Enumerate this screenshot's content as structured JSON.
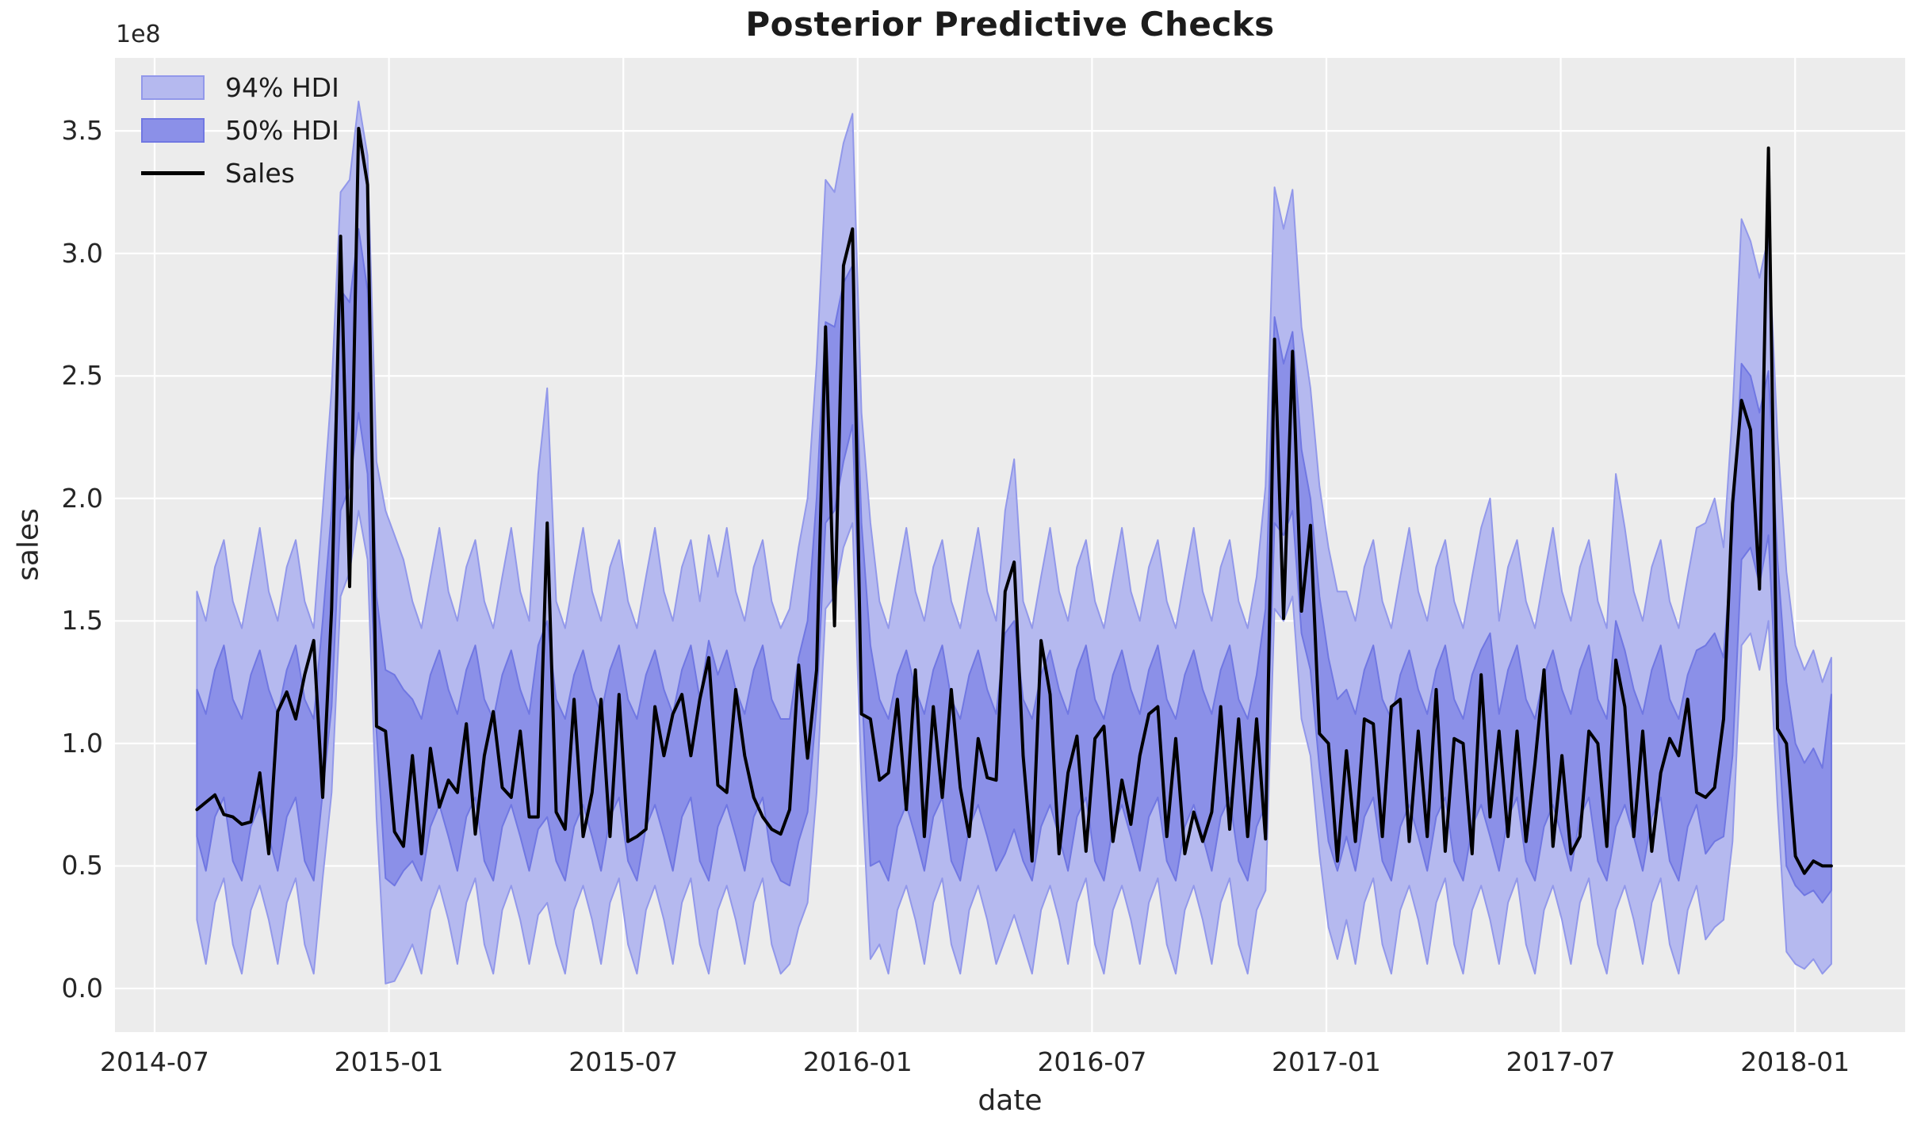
{
  "figure": {
    "title": "Posterior Predictive Checks",
    "xlabel": "date",
    "ylabel": "sales",
    "offset_text": "1e8"
  },
  "legend": {
    "items": [
      {
        "label": "94% HDI",
        "kind": "band",
        "fill": "#b5b9ef",
        "edge": "#9298ea"
      },
      {
        "label": "50% HDI",
        "kind": "band",
        "fill": "#8b90e8",
        "edge": "#7077e2"
      },
      {
        "label": "Sales",
        "kind": "line",
        "color": "#000000"
      }
    ]
  },
  "chart_data": {
    "type": "line",
    "title": "Posterior Predictive Checks",
    "xlabel": "date",
    "ylabel": "sales",
    "y_offset_factor": "1e8",
    "x_start": "2014-08-03",
    "x_freq": "weekly",
    "x_tick_labels": [
      "2014-07",
      "2015-01",
      "2015-07",
      "2016-01",
      "2016-07",
      "2017-01",
      "2017-07",
      "2018-01"
    ],
    "y_tick_labels": [
      "0.0",
      "0.5",
      "1.0",
      "1.5",
      "2.0",
      "2.5",
      "3.0",
      "3.5"
    ],
    "y_tick_values": [
      0,
      0.5,
      1.0,
      1.5,
      2.0,
      2.5,
      3.0,
      3.5
    ],
    "ylim": [
      -0.178,
      3.798
    ],
    "grid": true,
    "legend_position": "upper left",
    "background": "#ececec",
    "grid_color": "#ffffff",
    "series": [
      {
        "name": "94% HDI",
        "kind": "band",
        "fill": "#b5b9ef",
        "edge": "#9298ea",
        "upper": [
          1.62,
          1.5,
          1.72,
          1.83,
          1.58,
          1.47,
          1.68,
          1.88,
          1.62,
          1.5,
          1.72,
          1.83,
          1.58,
          1.47,
          1.95,
          2.45,
          3.25,
          3.3,
          3.62,
          3.4,
          2.15,
          1.95,
          1.85,
          1.75,
          1.58,
          1.47,
          1.68,
          1.88,
          1.62,
          1.5,
          1.72,
          1.83,
          1.58,
          1.47,
          1.68,
          1.88,
          1.62,
          1.5,
          2.1,
          2.45,
          1.58,
          1.47,
          1.68,
          1.88,
          1.62,
          1.5,
          1.72,
          1.83,
          1.58,
          1.47,
          1.68,
          1.88,
          1.62,
          1.5,
          1.72,
          1.83,
          1.58,
          1.85,
          1.68,
          1.88,
          1.62,
          1.5,
          1.72,
          1.83,
          1.58,
          1.47,
          1.55,
          1.8,
          2.0,
          2.55,
          3.3,
          3.25,
          3.45,
          3.57,
          2.35,
          1.9,
          1.58,
          1.47,
          1.68,
          1.88,
          1.62,
          1.5,
          1.72,
          1.83,
          1.58,
          1.47,
          1.68,
          1.88,
          1.62,
          1.5,
          1.95,
          2.16,
          1.58,
          1.47,
          1.68,
          1.88,
          1.62,
          1.5,
          1.72,
          1.83,
          1.58,
          1.47,
          1.68,
          1.88,
          1.62,
          1.5,
          1.72,
          1.83,
          1.58,
          1.47,
          1.68,
          1.88,
          1.62,
          1.5,
          1.72,
          1.83,
          1.58,
          1.47,
          1.68,
          2.05,
          3.27,
          3.1,
          3.26,
          2.7,
          2.45,
          2.05,
          1.8,
          1.62,
          1.62,
          1.5,
          1.72,
          1.83,
          1.58,
          1.47,
          1.68,
          1.88,
          1.62,
          1.5,
          1.72,
          1.83,
          1.58,
          1.47,
          1.68,
          1.88,
          2.0,
          1.5,
          1.72,
          1.83,
          1.58,
          1.47,
          1.68,
          1.88,
          1.62,
          1.5,
          1.72,
          1.83,
          1.58,
          1.47,
          2.1,
          1.88,
          1.62,
          1.5,
          1.72,
          1.83,
          1.58,
          1.47,
          1.68,
          1.88,
          1.9,
          2.0,
          1.8,
          2.35,
          3.14,
          3.05,
          2.9,
          3.07,
          2.25,
          1.7,
          1.4,
          1.3,
          1.38,
          1.25,
          1.35
        ],
        "lower": [
          0.28,
          0.1,
          0.35,
          0.45,
          0.18,
          0.06,
          0.32,
          0.42,
          0.28,
          0.1,
          0.35,
          0.45,
          0.18,
          0.06,
          0.45,
          0.8,
          1.6,
          1.7,
          1.95,
          1.75,
          0.7,
          0.02,
          0.03,
          0.1,
          0.18,
          0.06,
          0.32,
          0.42,
          0.28,
          0.1,
          0.35,
          0.45,
          0.18,
          0.06,
          0.32,
          0.42,
          0.28,
          0.1,
          0.3,
          0.35,
          0.18,
          0.06,
          0.32,
          0.42,
          0.28,
          0.1,
          0.35,
          0.45,
          0.18,
          0.06,
          0.32,
          0.42,
          0.28,
          0.1,
          0.35,
          0.45,
          0.18,
          0.06,
          0.32,
          0.42,
          0.28,
          0.1,
          0.35,
          0.45,
          0.18,
          0.06,
          0.1,
          0.25,
          0.35,
          0.8,
          1.55,
          1.6,
          1.8,
          1.9,
          0.85,
          0.12,
          0.18,
          0.06,
          0.32,
          0.42,
          0.28,
          0.1,
          0.35,
          0.45,
          0.18,
          0.06,
          0.32,
          0.42,
          0.28,
          0.1,
          0.2,
          0.3,
          0.18,
          0.06,
          0.32,
          0.42,
          0.28,
          0.1,
          0.35,
          0.45,
          0.18,
          0.06,
          0.32,
          0.42,
          0.28,
          0.1,
          0.35,
          0.45,
          0.18,
          0.06,
          0.32,
          0.42,
          0.28,
          0.1,
          0.35,
          0.45,
          0.18,
          0.06,
          0.32,
          0.4,
          1.55,
          1.5,
          1.6,
          1.1,
          0.95,
          0.55,
          0.25,
          0.12,
          0.28,
          0.1,
          0.35,
          0.45,
          0.18,
          0.06,
          0.32,
          0.42,
          0.28,
          0.1,
          0.35,
          0.45,
          0.18,
          0.06,
          0.32,
          0.42,
          0.28,
          0.1,
          0.35,
          0.45,
          0.18,
          0.06,
          0.32,
          0.42,
          0.28,
          0.1,
          0.35,
          0.45,
          0.18,
          0.06,
          0.32,
          0.42,
          0.28,
          0.1,
          0.35,
          0.45,
          0.18,
          0.06,
          0.32,
          0.42,
          0.2,
          0.25,
          0.28,
          0.6,
          1.4,
          1.45,
          1.3,
          1.5,
          0.75,
          0.15,
          0.1,
          0.08,
          0.12,
          0.06,
          0.1
        ]
      },
      {
        "name": "50% HDI",
        "kind": "band",
        "fill": "#8b90e8",
        "edge": "#7077e2",
        "upper": [
          1.22,
          1.12,
          1.3,
          1.4,
          1.18,
          1.1,
          1.28,
          1.38,
          1.22,
          1.12,
          1.3,
          1.4,
          1.18,
          1.1,
          1.5,
          1.95,
          2.85,
          2.8,
          3.1,
          2.85,
          1.6,
          1.3,
          1.28,
          1.22,
          1.18,
          1.1,
          1.28,
          1.38,
          1.22,
          1.12,
          1.3,
          1.4,
          1.18,
          1.1,
          1.28,
          1.38,
          1.22,
          1.12,
          1.4,
          1.5,
          1.18,
          1.1,
          1.28,
          1.38,
          1.22,
          1.12,
          1.3,
          1.4,
          1.18,
          1.1,
          1.28,
          1.38,
          1.22,
          1.12,
          1.3,
          1.4,
          1.18,
          1.42,
          1.28,
          1.38,
          1.22,
          1.12,
          1.3,
          1.4,
          1.18,
          1.1,
          1.1,
          1.35,
          1.5,
          2.0,
          2.72,
          2.7,
          2.88,
          2.95,
          1.9,
          1.4,
          1.18,
          1.1,
          1.28,
          1.38,
          1.22,
          1.12,
          1.3,
          1.4,
          1.18,
          1.1,
          1.28,
          1.38,
          1.22,
          1.12,
          1.45,
          1.5,
          1.18,
          1.1,
          1.28,
          1.38,
          1.22,
          1.12,
          1.3,
          1.4,
          1.18,
          1.1,
          1.28,
          1.38,
          1.22,
          1.12,
          1.3,
          1.4,
          1.18,
          1.1,
          1.28,
          1.38,
          1.22,
          1.12,
          1.3,
          1.4,
          1.18,
          1.1,
          1.28,
          1.55,
          2.74,
          2.55,
          2.68,
          2.2,
          2.0,
          1.6,
          1.35,
          1.18,
          1.22,
          1.12,
          1.3,
          1.4,
          1.18,
          1.1,
          1.28,
          1.38,
          1.22,
          1.12,
          1.3,
          1.4,
          1.18,
          1.1,
          1.28,
          1.38,
          1.45,
          1.12,
          1.3,
          1.4,
          1.18,
          1.1,
          1.28,
          1.38,
          1.22,
          1.12,
          1.3,
          1.4,
          1.18,
          1.1,
          1.5,
          1.38,
          1.22,
          1.12,
          1.3,
          1.4,
          1.18,
          1.1,
          1.28,
          1.38,
          1.4,
          1.45,
          1.35,
          1.85,
          2.55,
          2.5,
          2.35,
          2.52,
          1.75,
          1.25,
          1.0,
          0.92,
          0.98,
          0.9,
          1.2
        ],
        "lower": [
          0.62,
          0.48,
          0.7,
          0.78,
          0.52,
          0.44,
          0.66,
          0.75,
          0.62,
          0.48,
          0.7,
          0.78,
          0.52,
          0.44,
          0.8,
          1.15,
          1.95,
          2.05,
          2.35,
          2.1,
          1.05,
          0.45,
          0.42,
          0.48,
          0.52,
          0.44,
          0.66,
          0.75,
          0.62,
          0.48,
          0.7,
          0.78,
          0.52,
          0.44,
          0.66,
          0.75,
          0.62,
          0.48,
          0.65,
          0.7,
          0.52,
          0.44,
          0.66,
          0.75,
          0.62,
          0.48,
          0.7,
          0.78,
          0.52,
          0.44,
          0.66,
          0.75,
          0.62,
          0.48,
          0.7,
          0.78,
          0.52,
          0.44,
          0.66,
          0.75,
          0.62,
          0.48,
          0.7,
          0.78,
          0.52,
          0.44,
          0.42,
          0.6,
          0.72,
          1.15,
          1.9,
          1.95,
          2.15,
          2.3,
          1.25,
          0.5,
          0.52,
          0.44,
          0.66,
          0.75,
          0.62,
          0.48,
          0.7,
          0.78,
          0.52,
          0.44,
          0.66,
          0.75,
          0.62,
          0.48,
          0.55,
          0.65,
          0.52,
          0.44,
          0.66,
          0.75,
          0.62,
          0.48,
          0.7,
          0.78,
          0.52,
          0.44,
          0.66,
          0.75,
          0.62,
          0.48,
          0.7,
          0.78,
          0.52,
          0.44,
          0.66,
          0.75,
          0.62,
          0.48,
          0.7,
          0.78,
          0.52,
          0.44,
          0.66,
          0.75,
          1.9,
          1.85,
          1.95,
          1.45,
          1.3,
          0.9,
          0.6,
          0.48,
          0.62,
          0.48,
          0.7,
          0.78,
          0.52,
          0.44,
          0.66,
          0.75,
          0.62,
          0.48,
          0.7,
          0.78,
          0.52,
          0.44,
          0.66,
          0.75,
          0.62,
          0.48,
          0.7,
          0.78,
          0.52,
          0.44,
          0.66,
          0.75,
          0.62,
          0.48,
          0.7,
          0.78,
          0.52,
          0.44,
          0.66,
          0.75,
          0.62,
          0.48,
          0.7,
          0.78,
          0.52,
          0.44,
          0.66,
          0.75,
          0.55,
          0.6,
          0.62,
          0.95,
          1.75,
          1.8,
          1.65,
          1.85,
          1.1,
          0.5,
          0.42,
          0.38,
          0.4,
          0.35,
          0.4
        ]
      },
      {
        "name": "Sales",
        "kind": "line",
        "color": "#000000",
        "values": [
          0.73,
          0.76,
          0.79,
          0.71,
          0.7,
          0.67,
          0.68,
          0.88,
          0.55,
          1.13,
          1.21,
          1.1,
          1.28,
          1.42,
          0.78,
          1.55,
          3.07,
          1.64,
          3.51,
          3.28,
          1.07,
          1.05,
          0.64,
          0.58,
          0.95,
          0.55,
          0.98,
          0.74,
          0.85,
          0.8,
          1.08,
          0.63,
          0.95,
          1.13,
          0.82,
          0.78,
          1.05,
          0.7,
          0.7,
          1.9,
          0.72,
          0.65,
          1.18,
          0.62,
          0.8,
          1.18,
          0.62,
          1.2,
          0.6,
          0.62,
          0.65,
          1.15,
          0.95,
          1.12,
          1.2,
          0.95,
          1.18,
          1.35,
          0.83,
          0.8,
          1.22,
          0.95,
          0.78,
          0.7,
          0.65,
          0.63,
          0.73,
          1.32,
          0.94,
          1.3,
          2.7,
          1.48,
          2.95,
          3.1,
          1.12,
          1.1,
          0.85,
          0.88,
          1.18,
          0.73,
          1.3,
          0.62,
          1.15,
          0.78,
          1.22,
          0.82,
          0.62,
          1.02,
          0.86,
          0.85,
          1.62,
          1.74,
          0.95,
          0.52,
          1.42,
          1.2,
          0.55,
          0.88,
          1.03,
          0.56,
          1.02,
          1.07,
          0.6,
          0.85,
          0.67,
          0.95,
          1.12,
          1.15,
          0.62,
          1.02,
          0.55,
          0.72,
          0.6,
          0.72,
          1.15,
          0.65,
          1.1,
          0.62,
          1.1,
          0.61,
          2.65,
          1.51,
          2.6,
          1.54,
          1.89,
          1.04,
          1.0,
          0.52,
          0.97,
          0.6,
          1.1,
          1.08,
          0.62,
          1.15,
          1.18,
          0.6,
          1.05,
          0.62,
          1.22,
          0.56,
          1.02,
          1.0,
          0.55,
          1.28,
          0.7,
          1.05,
          0.62,
          1.05,
          0.6,
          0.92,
          1.3,
          0.58,
          0.95,
          0.55,
          0.62,
          1.05,
          1.0,
          0.58,
          1.34,
          1.15,
          0.62,
          1.05,
          0.56,
          0.88,
          1.02,
          0.95,
          1.18,
          0.8,
          0.78,
          0.82,
          1.1,
          1.98,
          2.4,
          2.28,
          1.63,
          3.43,
          1.06,
          1.0,
          0.54,
          0.47,
          0.52,
          0.5,
          0.5
        ]
      }
    ]
  }
}
